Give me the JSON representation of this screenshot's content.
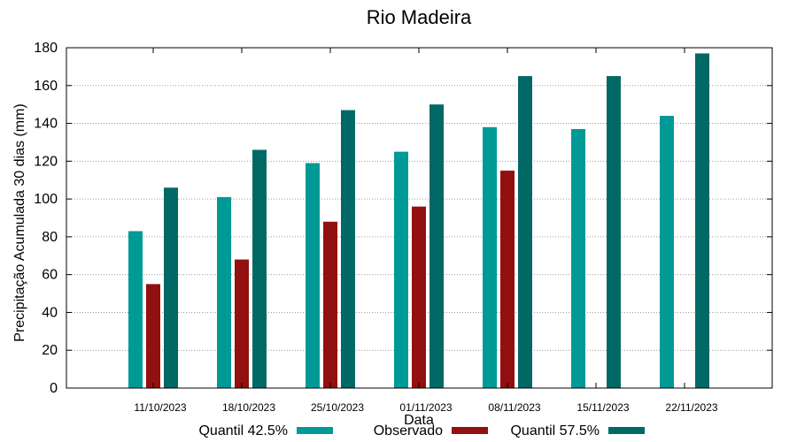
{
  "chart_data": {
    "type": "bar",
    "title": "Rio Madeira",
    "xlabel": "Data",
    "ylabel": "Precipitação Acumulada 30 dias (mm)",
    "ylim": [
      0,
      180
    ],
    "yticks": [
      0,
      20,
      40,
      60,
      80,
      100,
      120,
      140,
      160,
      180
    ],
    "grid": true,
    "legend_position": "bottom",
    "categories": [
      "11/10/2023",
      "18/10/2023",
      "25/10/2023",
      "01/11/2023",
      "08/11/2023",
      "15/11/2023",
      "22/11/2023"
    ],
    "series": [
      {
        "name": "Quantil 42.5%",
        "color": "#009a96",
        "values": [
          83,
          101,
          119,
          125,
          138,
          137,
          144
        ]
      },
      {
        "name": "Observado",
        "color": "#921010",
        "values": [
          55,
          68,
          88,
          96,
          115,
          null,
          null
        ]
      },
      {
        "name": "Quantil 57.5%",
        "color": "#006966",
        "values": [
          106,
          126,
          147,
          150,
          165,
          165,
          177
        ]
      }
    ]
  }
}
